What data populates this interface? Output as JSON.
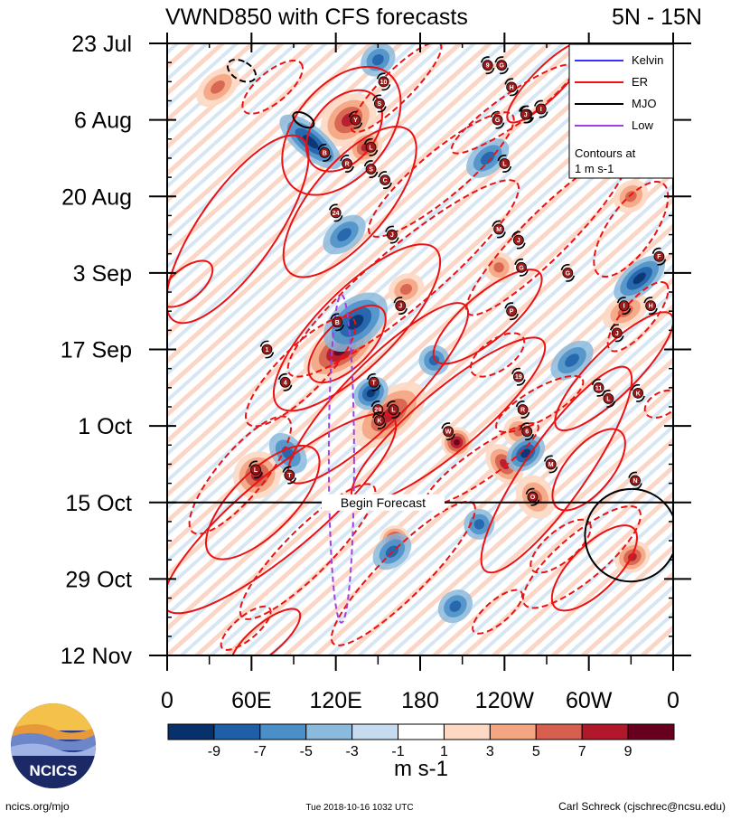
{
  "chart_data": {
    "type": "heatmap",
    "title": "VWND850 with CFS forecasts",
    "region": "5N - 15N",
    "x_ticks": [
      "0",
      "60E",
      "120E",
      "180",
      "120W",
      "60W",
      "0"
    ],
    "x_values": [
      0,
      60,
      120,
      180,
      240,
      300,
      360
    ],
    "y_ticks": [
      "23 Jul",
      "6 Aug",
      "20 Aug",
      "3 Sep",
      "17 Sep",
      "1 Oct",
      "15 Oct",
      "29 Oct",
      "12 Nov"
    ],
    "y_values": [
      0,
      14,
      28,
      42,
      56,
      70,
      84,
      98,
      112
    ],
    "xlim": [
      0,
      360
    ],
    "ylim": [
      0,
      112
    ],
    "forecast_start_day": 84,
    "forecast_label": "Begin Forecast",
    "legend": {
      "placement": "top-right",
      "entries": [
        {
          "name": "Kelvin",
          "color": "#3333ff"
        },
        {
          "name": "ER",
          "color": "#ee1111"
        },
        {
          "name": "MJO",
          "color": "#000000"
        },
        {
          "name": "Low",
          "color": "#a040e0"
        }
      ],
      "note_line1": "Contours at",
      "note_line2": "1 m s-1"
    },
    "colorbar": {
      "labels": [
        "-9",
        "-7",
        "-5",
        "-3",
        "-1",
        "1",
        "3",
        "5",
        "7",
        "9"
      ],
      "colors": [
        "#08306b",
        "#1f5fa8",
        "#4a8fc8",
        "#8cbadc",
        "#c6dbef",
        "#ffffff",
        "#fdd9c4",
        "#f4a582",
        "#d6604d",
        "#b2182b",
        "#67001f"
      ],
      "units": "m s-1"
    },
    "positive_blobs": [
      {
        "lon": 129,
        "day": 14,
        "rlon": 10,
        "rday": 3,
        "angle": -40,
        "level": 3
      },
      {
        "lon": 141,
        "day": 19,
        "rlon": 6,
        "rday": 2,
        "angle": -40,
        "level": 3
      },
      {
        "lon": 124,
        "day": 56,
        "rlon": 14,
        "rday": 3,
        "angle": -35,
        "level": 4
      },
      {
        "lon": 158,
        "day": 68,
        "rlon": 14,
        "rday": 3,
        "angle": -40,
        "level": 3
      },
      {
        "lon": 262,
        "day": 83,
        "rlon": 6,
        "rday": 3,
        "angle": -30,
        "level": 2
      },
      {
        "lon": 162,
        "day": 91,
        "rlon": 5,
        "rday": 2,
        "angle": -30,
        "level": 4
      },
      {
        "lon": 331,
        "day": 94,
        "rlon": 6,
        "rday": 2,
        "angle": -30,
        "level": 3
      },
      {
        "lon": 206,
        "day": 73,
        "rlon": 5,
        "rday": 2,
        "angle": -30,
        "level": 4
      },
      {
        "lon": 240,
        "day": 77,
        "rlon": 5,
        "rday": 3,
        "angle": -40,
        "level": 3
      },
      {
        "lon": 64,
        "day": 79,
        "rlon": 8,
        "rday": 3,
        "angle": -40,
        "level": 3
      },
      {
        "lon": 250,
        "day": 71,
        "rlon": 5,
        "rday": 2,
        "angle": -30,
        "level": 2
      },
      {
        "lon": 170,
        "day": 45,
        "rlon": 6,
        "rday": 2,
        "angle": -30,
        "level": 2
      },
      {
        "lon": 236,
        "day": 41,
        "rlon": 5,
        "rday": 2,
        "angle": -30,
        "level": 2
      },
      {
        "lon": 326,
        "day": 49,
        "rlon": 8,
        "rday": 2,
        "angle": -30,
        "level": 2
      },
      {
        "lon": 330,
        "day": 28,
        "rlon": 6,
        "rday": 2,
        "angle": -40,
        "level": 2
      },
      {
        "lon": 36,
        "day": 8,
        "rlon": 8,
        "rday": 2,
        "angle": -40,
        "level": 2
      }
    ],
    "negative_blobs": [
      {
        "lon": 102,
        "day": 18,
        "rlon": 5,
        "rday": 5,
        "angle": -50,
        "level": 3
      },
      {
        "lon": 134,
        "day": 51,
        "rlon": 12,
        "rday": 3,
        "angle": -40,
        "level": 3
      },
      {
        "lon": 126,
        "day": 35,
        "rlon": 8,
        "rday": 2,
        "angle": -40,
        "level": 2
      },
      {
        "lon": 145,
        "day": 64,
        "rlon": 6,
        "rday": 2,
        "angle": -40,
        "level": 3
      },
      {
        "lon": 255,
        "day": 75,
        "rlon": 7,
        "rday": 2,
        "angle": -40,
        "level": 3
      },
      {
        "lon": 228,
        "day": 21,
        "rlon": 8,
        "rday": 2,
        "angle": -40,
        "level": 2
      },
      {
        "lon": 336,
        "day": 43,
        "rlon": 10,
        "rday": 2,
        "angle": -40,
        "level": 3
      },
      {
        "lon": 160,
        "day": 93,
        "rlon": 7,
        "rday": 2,
        "angle": -40,
        "level": 2
      },
      {
        "lon": 205,
        "day": 103,
        "rlon": 6,
        "rday": 2,
        "angle": -40,
        "level": 2
      },
      {
        "lon": 86,
        "day": 75,
        "rlon": 5,
        "rday": 3,
        "angle": -40,
        "level": 2
      },
      {
        "lon": 150,
        "day": 3,
        "rlon": 6,
        "rday": 2,
        "angle": -40,
        "level": 2
      },
      {
        "lon": 288,
        "day": 58,
        "rlon": 8,
        "rday": 2,
        "angle": -40,
        "level": 2
      },
      {
        "lon": 222,
        "day": 88,
        "rlon": 5,
        "rday": 2,
        "angle": -40,
        "level": 2
      },
      {
        "lon": 190,
        "day": 58,
        "rlon": 5,
        "rday": 2,
        "angle": -40,
        "level": 2
      }
    ],
    "er_contours": [
      {
        "lon": 124,
        "day": 16,
        "rlon": 24,
        "rday": 6,
        "angle": -50,
        "dashed": false
      },
      {
        "lon": 126,
        "day": 16,
        "rlon": 15,
        "rday": 4,
        "angle": -50,
        "dashed": false
      },
      {
        "lon": 50,
        "day": 34,
        "rlon": 36,
        "rday": 5,
        "angle": -55,
        "dashed": false
      },
      {
        "lon": 130,
        "day": 29,
        "rlon": 30,
        "rday": 5,
        "angle": -50,
        "dashed": false
      },
      {
        "lon": 135,
        "day": 52,
        "rlon": 36,
        "rday": 5,
        "angle": -45,
        "dashed": false
      },
      {
        "lon": 128,
        "day": 55,
        "rlon": 16,
        "rday": 3,
        "angle": -45,
        "dashed": false
      },
      {
        "lon": 150,
        "day": 64,
        "rlon": 40,
        "rday": 4,
        "angle": -45,
        "dashed": false
      },
      {
        "lon": 80,
        "day": 86,
        "rlon": 48,
        "rday": 5,
        "angle": -40,
        "dashed": false
      },
      {
        "lon": 68,
        "day": 84,
        "rlon": 24,
        "rday": 4,
        "angle": -45,
        "dashed": false
      },
      {
        "lon": 228,
        "day": 50,
        "rlon": 22,
        "rday": 3,
        "angle": -40,
        "dashed": false
      },
      {
        "lon": 277,
        "day": 78,
        "rlon": 40,
        "rday": 4,
        "angle": -55,
        "dashed": false
      },
      {
        "lon": 300,
        "day": 78,
        "rlon": 16,
        "rday": 3,
        "angle": -50,
        "dashed": false
      },
      {
        "lon": 318,
        "day": 60,
        "rlon": 26,
        "rday": 3,
        "angle": -45,
        "dashed": false
      },
      {
        "lon": 14,
        "day": 44,
        "rlon": 10,
        "rday": 2,
        "angle": -40,
        "dashed": false
      },
      {
        "lon": 271,
        "day": 7,
        "rlon": 18,
        "rday": 2,
        "angle": -45,
        "dashed": false
      },
      {
        "lon": 304,
        "day": 96,
        "rlon": 18,
        "rday": 3,
        "angle": -45,
        "dashed": false
      },
      {
        "lon": 70,
        "day": 109,
        "rlon": 14,
        "rday": 2,
        "angle": -40,
        "dashed": false
      },
      {
        "lon": 200,
        "day": 69,
        "rlon": 40,
        "rday": 4,
        "angle": -40,
        "dashed": false
      },
      {
        "lon": 75,
        "day": 8,
        "rlon": 12,
        "rday": 2,
        "angle": -40,
        "dashed": true
      },
      {
        "lon": 163,
        "day": 8,
        "rlon": 20,
        "rday": 2,
        "angle": -45,
        "dashed": true
      },
      {
        "lon": 95,
        "day": 60,
        "rlon": 24,
        "rday": 3,
        "angle": -45,
        "dashed": true
      },
      {
        "lon": 52,
        "day": 79,
        "rlon": 24,
        "rday": 3,
        "angle": -50,
        "dashed": true
      },
      {
        "lon": 168,
        "day": 43,
        "rlon": 48,
        "rday": 4,
        "angle": -40,
        "dashed": true
      },
      {
        "lon": 195,
        "day": 24,
        "rlon": 30,
        "rday": 3,
        "angle": -40,
        "dashed": true
      },
      {
        "lon": 270,
        "day": 35,
        "rlon": 36,
        "rday": 3,
        "angle": -45,
        "dashed": true
      },
      {
        "lon": 246,
        "day": 12,
        "rlon": 24,
        "rday": 2,
        "angle": -35,
        "dashed": true
      },
      {
        "lon": 330,
        "day": 34,
        "rlon": 18,
        "rday": 3,
        "angle": -55,
        "dashed": true
      },
      {
        "lon": 335,
        "day": 50,
        "rlon": 14,
        "rday": 2,
        "angle": -50,
        "dashed": true
      },
      {
        "lon": 265,
        "day": 66,
        "rlon": 16,
        "rday": 2,
        "angle": -30,
        "dashed": true
      },
      {
        "lon": 224,
        "day": 77,
        "rlon": 22,
        "rday": 2,
        "angle": -35,
        "dashed": true
      },
      {
        "lon": 295,
        "day": 94,
        "rlon": 24,
        "rday": 3,
        "angle": -40,
        "dashed": true
      },
      {
        "lon": 100,
        "day": 93,
        "rlon": 30,
        "rday": 3,
        "angle": -45,
        "dashed": true
      },
      {
        "lon": 168,
        "day": 97,
        "rlon": 32,
        "rday": 3,
        "angle": -45,
        "dashed": true
      },
      {
        "lon": 56,
        "day": 107,
        "rlon": 10,
        "rday": 1.5,
        "angle": -40,
        "dashed": true
      },
      {
        "lon": 235,
        "day": 104,
        "rlon": 10,
        "rday": 1.5,
        "angle": -40,
        "dashed": true
      },
      {
        "lon": 280,
        "day": 92,
        "rlon": 12,
        "rday": 2,
        "angle": -40,
        "dashed": true
      },
      {
        "lon": 352,
        "day": 66,
        "rlon": 6,
        "rday": 1.5,
        "angle": -30,
        "dashed": true
      },
      {
        "lon": 235,
        "day": 57,
        "rlon": 10,
        "rday": 2,
        "angle": -35,
        "dashed": true
      }
    ],
    "mjo_contours": [
      {
        "lon": 330,
        "day": 90,
        "rlon": 15,
        "rday": 6,
        "angle": -60,
        "dashed": false
      },
      {
        "lon": 97,
        "day": 14,
        "rlon": 2,
        "rday": 1.5,
        "angle": -60,
        "dashed": false
      },
      {
        "lon": 53,
        "day": 5,
        "rlon": 3,
        "rday": 2,
        "angle": -60,
        "dashed": true
      }
    ],
    "low_contour": {
      "lon": 124,
      "day": 76,
      "rlon": 9,
      "rday": 30,
      "angle": 0,
      "dashed": true
    },
    "storms": [
      {
        "label": "9",
        "lon": 228,
        "day": 4
      },
      {
        "label": "G",
        "lon": 238,
        "day": 4
      },
      {
        "label": "H",
        "lon": 245,
        "day": 8
      },
      {
        "label": "10",
        "lon": 154,
        "day": 7
      },
      {
        "label": "S",
        "lon": 151,
        "day": 11
      },
      {
        "label": "Y",
        "lon": 134,
        "day": 14
      },
      {
        "label": "G",
        "lon": 235,
        "day": 14
      },
      {
        "label": "H",
        "lon": 256,
        "day": 13
      },
      {
        "label": "I",
        "lon": 266,
        "day": 12
      },
      {
        "label": "B",
        "lon": 112,
        "day": 20
      },
      {
        "label": "L",
        "lon": 145,
        "day": 19
      },
      {
        "label": "R",
        "lon": 128,
        "day": 22
      },
      {
        "lon": 145,
        "day": 23,
        "label": "S"
      },
      {
        "label": "C",
        "lon": 155,
        "day": 25
      },
      {
        "label": "L",
        "lon": 240,
        "day": 22
      },
      {
        "label": "J",
        "lon": 255,
        "day": 13
      },
      {
        "label": "24",
        "lon": 120,
        "day": 31
      },
      {
        "label": "J",
        "lon": 160,
        "day": 35
      },
      {
        "label": "M",
        "lon": 236,
        "day": 34
      },
      {
        "label": "J",
        "lon": 250,
        "day": 36
      },
      {
        "label": "G",
        "lon": 252,
        "day": 41
      },
      {
        "label": "G",
        "lon": 285,
        "day": 42
      },
      {
        "label": "F",
        "lon": 350,
        "day": 39
      },
      {
        "label": "J",
        "lon": 166,
        "day": 48
      },
      {
        "label": "P",
        "lon": 245,
        "day": 49
      },
      {
        "label": "I",
        "lon": 325,
        "day": 48
      },
      {
        "label": "H",
        "lon": 344,
        "day": 48
      },
      {
        "label": "B",
        "lon": 121,
        "day": 51
      },
      {
        "label": "J",
        "lon": 320,
        "day": 53
      },
      {
        "label": "1",
        "lon": 71,
        "day": 56
      },
      {
        "label": "19",
        "lon": 250,
        "day": 61
      },
      {
        "label": "4",
        "lon": 84,
        "day": 62
      },
      {
        "label": "T",
        "lon": 147,
        "day": 62
      },
      {
        "label": "11",
        "lon": 307,
        "day": 63
      },
      {
        "label": "L",
        "lon": 314,
        "day": 65
      },
      {
        "label": "K",
        "lon": 335,
        "day": 64
      },
      {
        "label": "R",
        "lon": 253,
        "day": 67
      },
      {
        "label": "29",
        "lon": 150,
        "day": 67
      },
      {
        "label": "L",
        "lon": 161,
        "day": 67
      },
      {
        "label": "K",
        "lon": 151,
        "day": 69
      },
      {
        "label": "6",
        "lon": 256,
        "day": 71
      },
      {
        "label": "W",
        "lon": 200,
        "day": 71
      },
      {
        "label": "M",
        "lon": 273,
        "day": 77
      },
      {
        "label": "L",
        "lon": 63,
        "day": 78
      },
      {
        "label": "T",
        "lon": 87,
        "day": 79
      },
      {
        "label": "N",
        "lon": 333,
        "day": 80
      },
      {
        "label": "O",
        "lon": 260,
        "day": 83
      }
    ]
  },
  "footer": {
    "logo_text": "NCICS",
    "website": "ncics.org/mjo",
    "timestamp": "Tue 2018-10-16 1032 UTC",
    "author": "Carl Schreck (cjschrec@ncsu.edu)"
  }
}
